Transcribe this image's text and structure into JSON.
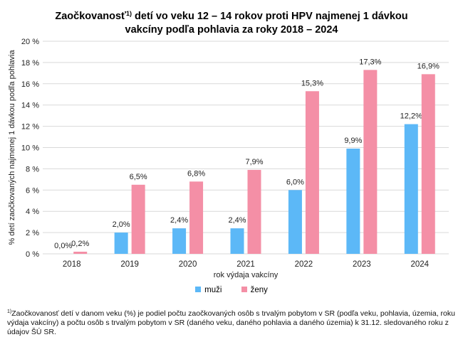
{
  "title": {
    "part1": "Zaočkovanosť",
    "sup": "1)",
    "part2": " detí vo veku 12 – 14 rokov proti HPV najmenej 1 dávkou",
    "line2": "vakcíny podľa pohlavia za roky 2018 – 2024"
  },
  "legend": {
    "men": "muži",
    "women": "ženy"
  },
  "footnote": {
    "sup": "1)",
    "text": "Zaočkovanosť  detí v danom veku (%) je podiel počtu zaočkovaných osôb s trvalým pobytom v SR (podľa veku, pohlavia, územia, roku výdaja vakcíny) a počtu osôb s trvalým pobytom v SR (daného veku, daného pohlavia  a daného územia) k 31.12. sledovaného  roku z údajov ŠÚ SR."
  },
  "colors": {
    "men": "#5cb8f7",
    "women": "#f48fa6",
    "grid": "#d9d9d9"
  },
  "chart_data": {
    "type": "bar",
    "title": "Zaočkovanosť 1) detí vo veku 12 – 14 rokov proti HPV najmenej 1 dávkou vakcíny podľa pohlavia za roky 2018 – 2024",
    "xlabel": "rok výdaja vakcíny",
    "ylabel": "% detí zaočkovaných najmenej  1 dávkou  podľa pohlavia",
    "ylim": [
      0,
      20
    ],
    "yticks": [
      0,
      2,
      4,
      6,
      8,
      10,
      12,
      14,
      16,
      18,
      20
    ],
    "ytick_labels": [
      "0 %",
      "2 %",
      "4 %",
      "6 %",
      "8 %",
      "10 %",
      "12 %",
      "14 %",
      "16 %",
      "18 %",
      "20 %"
    ],
    "grid": true,
    "legend_position": "bottom",
    "categories": [
      "2018",
      "2019",
      "2020",
      "2021",
      "2022",
      "2023",
      "2024"
    ],
    "series": [
      {
        "name": "muži",
        "values": [
          0.0,
          2.0,
          2.4,
          2.4,
          6.0,
          9.9,
          12.2
        ],
        "labels": [
          "0,0%",
          "2,0%",
          "2,4%",
          "2,4%",
          "6,0%",
          "9,9%",
          "12,2%"
        ]
      },
      {
        "name": "ženy",
        "values": [
          0.2,
          6.5,
          6.8,
          7.9,
          15.3,
          17.3,
          16.9
        ],
        "labels": [
          "0,2%",
          "6,5%",
          "6,8%",
          "7,9%",
          "15,3%",
          "17,3%",
          "16,9%"
        ]
      }
    ]
  }
}
